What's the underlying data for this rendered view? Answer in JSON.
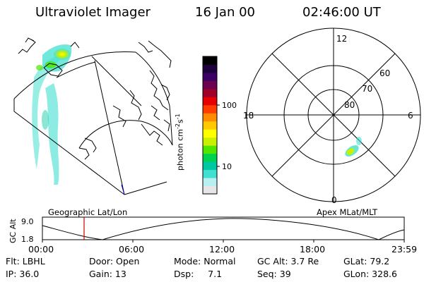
{
  "header": {
    "instrument": "Ultraviolet Imager",
    "date": "16 Jan 00",
    "time": "02:46:00 UT"
  },
  "colorbar": {
    "label_main": "photon cm",
    "label_exp1": "-2",
    "label_mid": "s",
    "label_exp2": "-1",
    "ticks": [
      "100",
      "10"
    ],
    "colors": [
      "#e6e6e6",
      "#b8f0f0",
      "#40e0d0",
      "#00c8a0",
      "#00d250",
      "#50e600",
      "#c8f000",
      "#ffff00",
      "#ffc800",
      "#ff8c00",
      "#ff3c00",
      "#e60000",
      "#a00028",
      "#6e0050",
      "#3c0064",
      "#1e003c",
      "#000000"
    ]
  },
  "geo_panel": {
    "caption": "Geographic Lat/Lon"
  },
  "polar_panel": {
    "caption": "Apex MLat/MLT",
    "mlt_labels": [
      "12",
      "18",
      "6",
      "0"
    ],
    "mlat_labels": [
      "60",
      "70",
      "80"
    ]
  },
  "altitude_plot": {
    "ylabel": "GC Alt",
    "yticks": [
      "9.0",
      "1.8"
    ],
    "xticks": [
      "00:00",
      "06:00",
      "12:00",
      "18:00",
      "23:59"
    ],
    "marker_color": "#cc0000"
  },
  "info": {
    "flt": "Flt: LBHL",
    "door": "Door: Open",
    "mode": "Mode: Normal",
    "gc_alt": "GC Alt: 3.7 Re",
    "glat": "GLat:  79.2",
    "ip": "IP: 36.0",
    "gain": "Gain: 13",
    "dsp": "Dsp:     7.1",
    "seq": "Seq: 39",
    "glon": "GLon: 328.6"
  }
}
